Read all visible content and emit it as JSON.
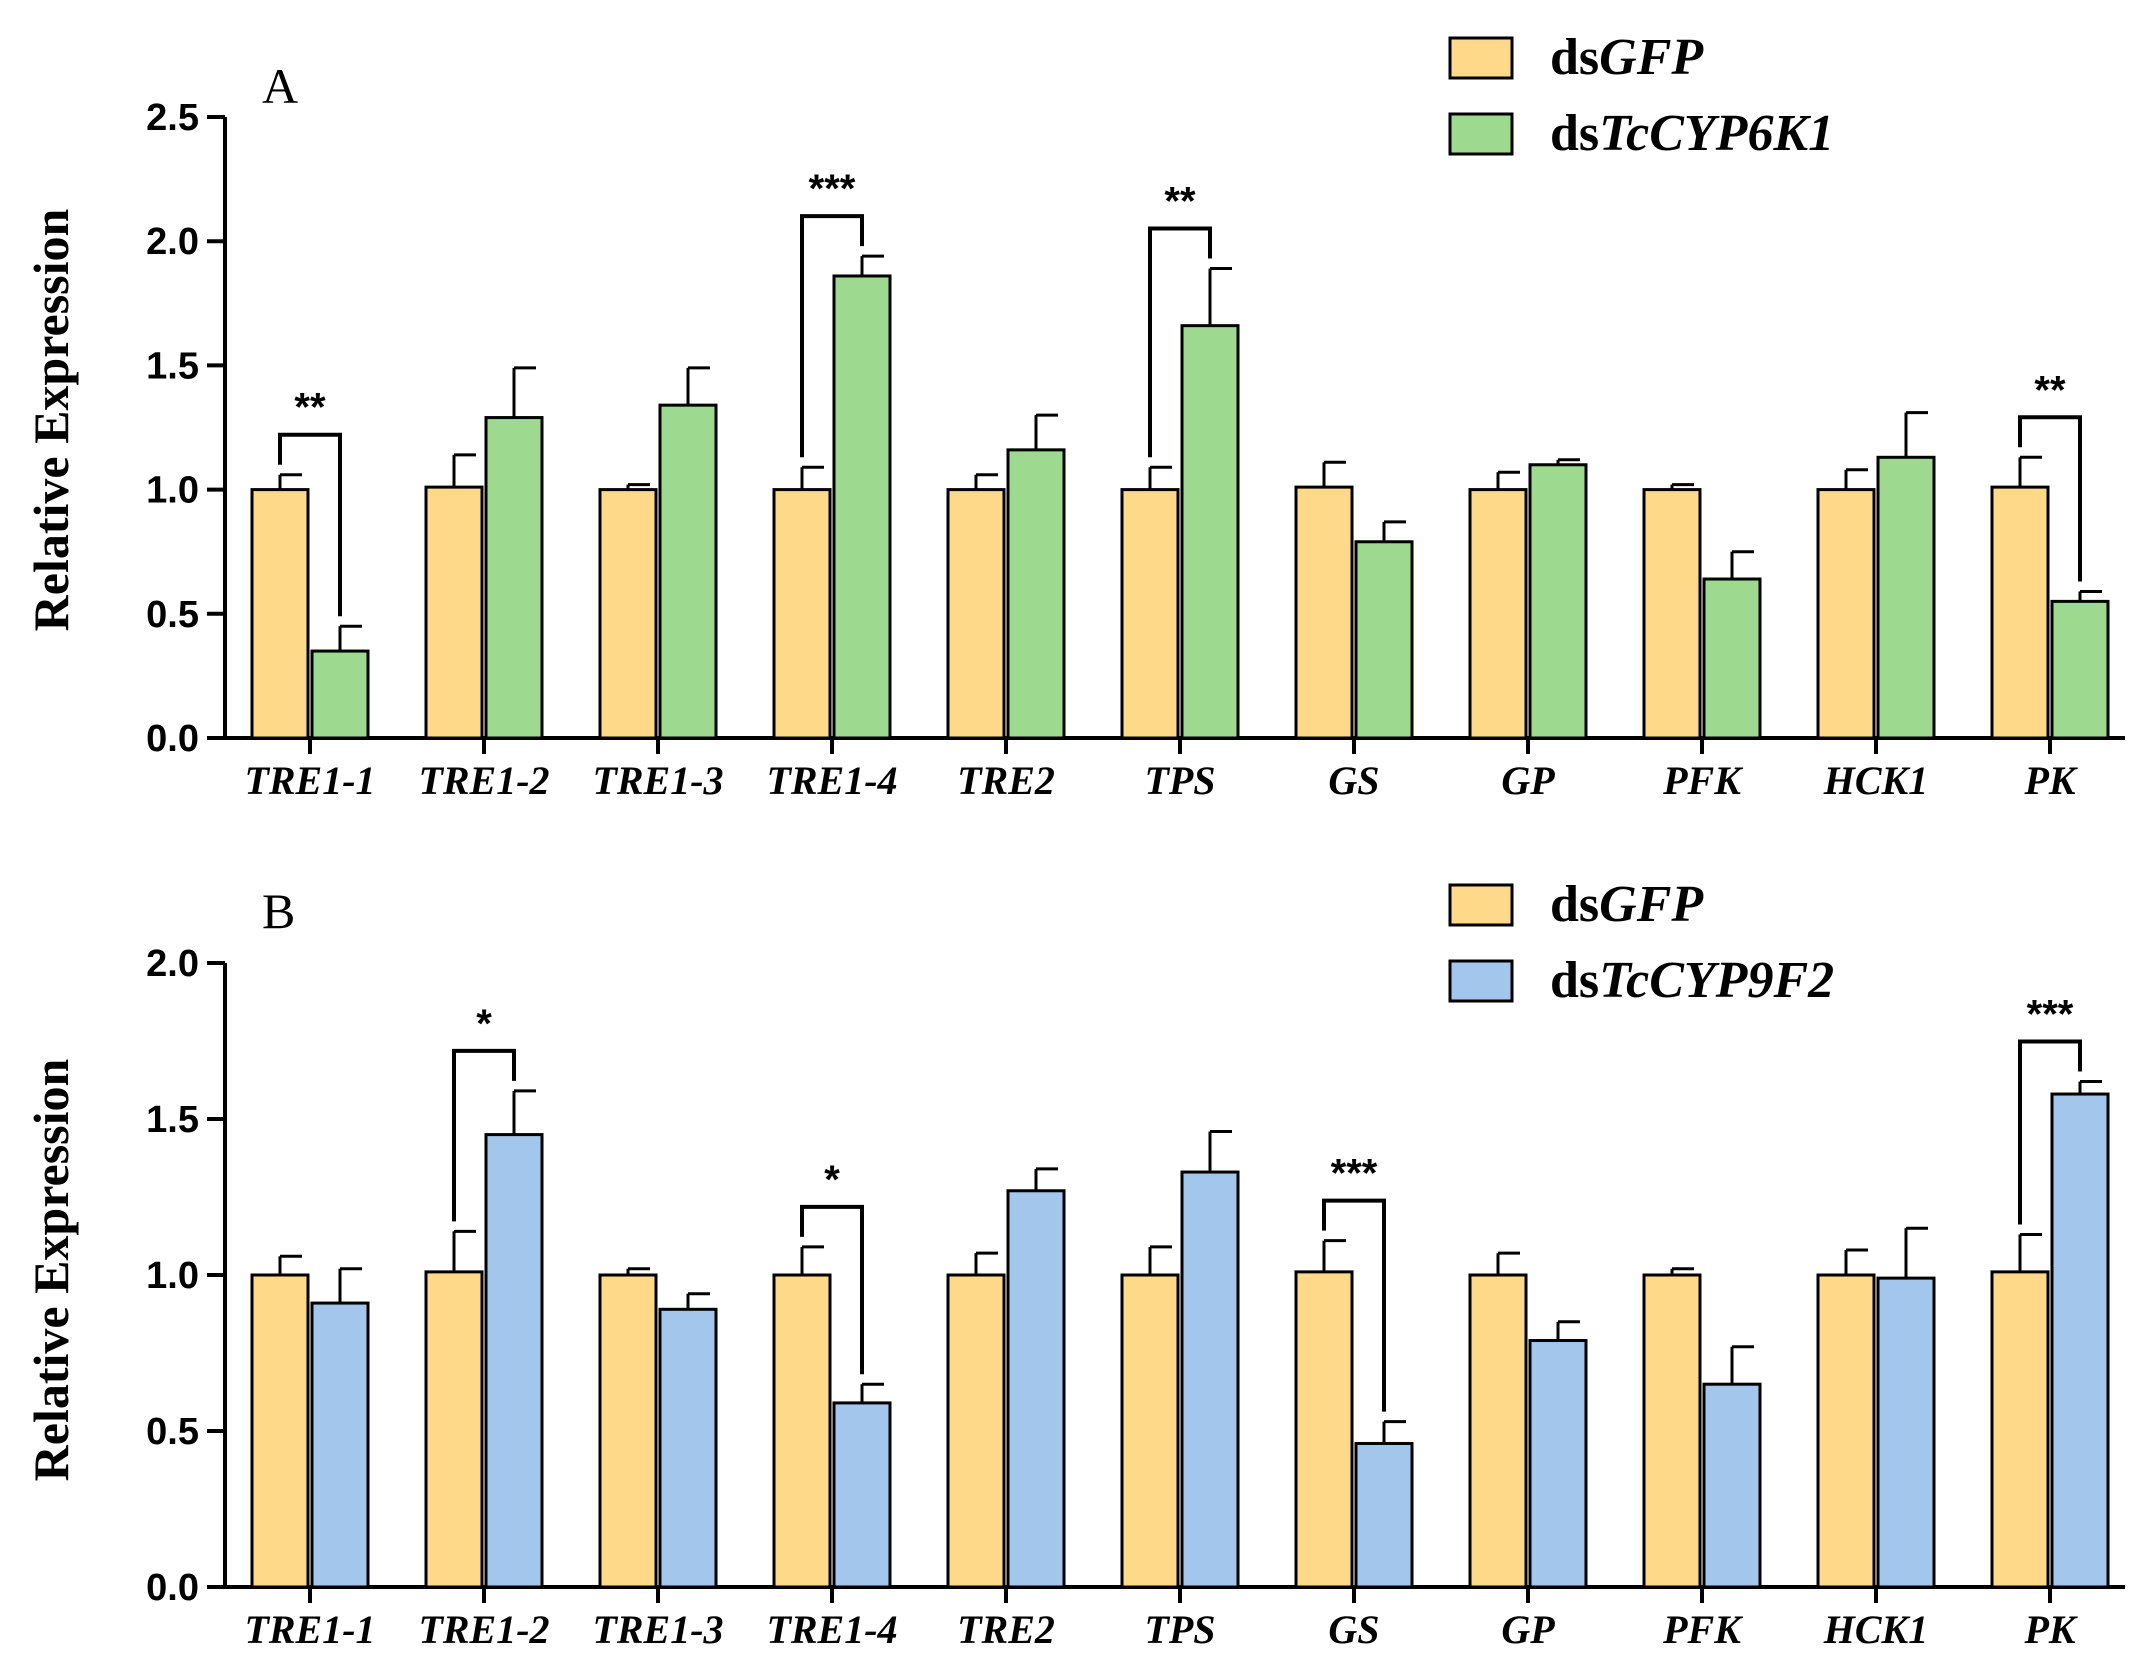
{
  "chart_data": [
    {
      "type": "bar",
      "panel_label": "A",
      "ylabel": "Relative Expression",
      "ylim": [
        0,
        2.5
      ],
      "yticks": [
        "0.0",
        "0.5",
        "1.0",
        "1.5",
        "2.0",
        "2.5"
      ],
      "legend_position": "top-right",
      "categories": [
        "TRE1-1",
        "TRE1-2",
        "TRE1-3",
        "TRE1-4",
        "TRE2",
        "TPS",
        "GS",
        "GP",
        "PFK",
        "HCK1",
        "PK"
      ],
      "series": [
        {
          "name": "dsGFP",
          "legend_prefix": "ds",
          "legend_gene": "GFP",
          "color": "#FFD98A",
          "values": [
            1.0,
            1.01,
            1.0,
            1.0,
            1.0,
            1.0,
            1.01,
            1.0,
            1.0,
            1.0,
            1.01
          ],
          "errors": [
            0.06,
            0.13,
            0.02,
            0.09,
            0.06,
            0.09,
            0.1,
            0.07,
            0.02,
            0.08,
            0.12
          ]
        },
        {
          "name": "dsTcCYP6K1",
          "legend_prefix": "ds",
          "legend_gene": "TcCYP6K1",
          "color": "#9DD98F",
          "values": [
            0.35,
            1.29,
            1.34,
            1.86,
            1.16,
            1.66,
            0.79,
            1.1,
            0.64,
            1.13,
            0.55
          ],
          "errors": [
            0.1,
            0.2,
            0.15,
            0.08,
            0.14,
            0.23,
            0.08,
            0.02,
            0.11,
            0.18,
            0.04
          ]
        }
      ],
      "significance": [
        {
          "category_index": 0,
          "label": "**"
        },
        {
          "category_index": 3,
          "label": "***"
        },
        {
          "category_index": 5,
          "label": "**"
        },
        {
          "category_index": 10,
          "label": "**"
        }
      ]
    },
    {
      "type": "bar",
      "panel_label": "B",
      "ylabel": "Relative Expression",
      "ylim": [
        0,
        2.0
      ],
      "yticks": [
        "0.0",
        "0.5",
        "1.0",
        "1.5",
        "2.0"
      ],
      "legend_position": "top-right",
      "categories": [
        "TRE1-1",
        "TRE1-2",
        "TRE1-3",
        "TRE1-4",
        "TRE2",
        "TPS",
        "GS",
        "GP",
        "PFK",
        "HCK1",
        "PK"
      ],
      "series": [
        {
          "name": "dsGFP",
          "legend_prefix": "ds",
          "legend_gene": "GFP",
          "color": "#FFD98A",
          "values": [
            1.0,
            1.01,
            1.0,
            1.0,
            1.0,
            1.0,
            1.01,
            1.0,
            1.0,
            1.0,
            1.01
          ],
          "errors": [
            0.06,
            0.13,
            0.02,
            0.09,
            0.07,
            0.09,
            0.1,
            0.07,
            0.02,
            0.08,
            0.12
          ]
        },
        {
          "name": "dsTcCYP9F2",
          "legend_prefix": "ds",
          "legend_gene": "TcCYP9F2",
          "color": "#A2C6EC",
          "values": [
            0.91,
            1.45,
            0.89,
            0.59,
            1.27,
            1.33,
            0.46,
            0.79,
            0.65,
            0.99,
            1.58
          ],
          "errors": [
            0.11,
            0.14,
            0.05,
            0.06,
            0.07,
            0.13,
            0.07,
            0.06,
            0.12,
            0.16,
            0.04
          ]
        }
      ],
      "significance": [
        {
          "category_index": 1,
          "label": "*"
        },
        {
          "category_index": 3,
          "label": "*"
        },
        {
          "category_index": 6,
          "label": "***"
        },
        {
          "category_index": 10,
          "label": "***"
        }
      ]
    }
  ]
}
